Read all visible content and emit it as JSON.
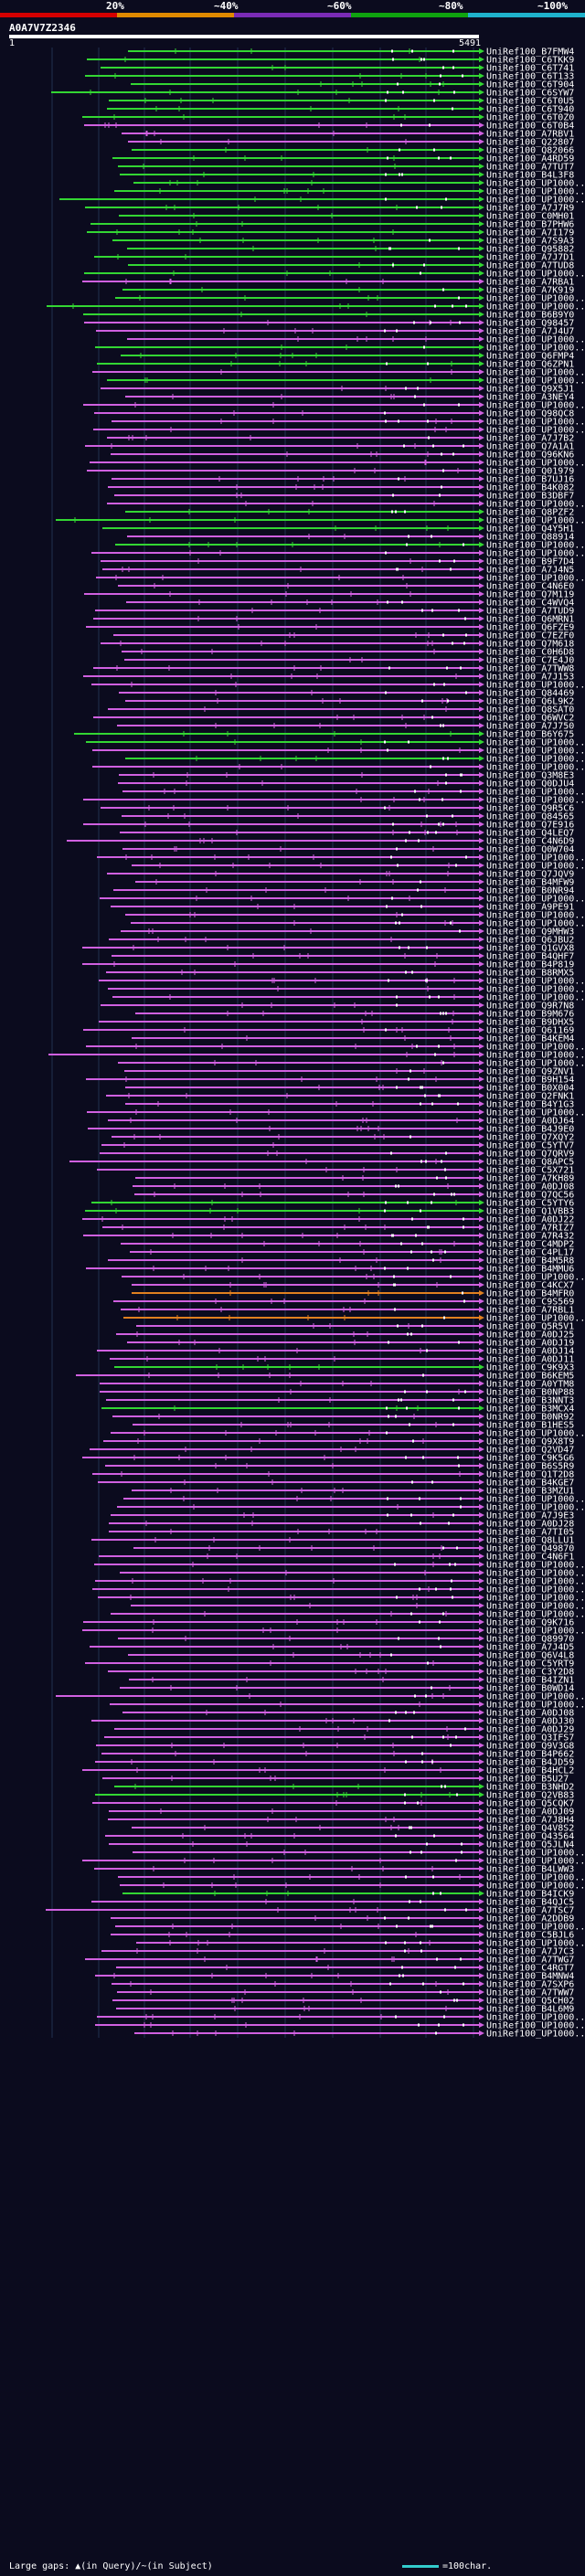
{
  "scale": {
    "ticks": [
      "20%",
      "~40%",
      "~60%",
      "~80%",
      "~100%"
    ],
    "segments": [
      {
        "color": "#d40000"
      },
      {
        "color": "#e08a00"
      },
      {
        "color": "#7a2bb5"
      },
      {
        "color": "#0fa30f"
      },
      {
        "color": "#1fb2cc"
      }
    ]
  },
  "query": {
    "name": "A0A7V7Z2346",
    "start": "1",
    "end": "5491"
  },
  "colors": {
    "purple": "#d060e0",
    "green": "#33d633",
    "orange": "#e08020",
    "grid": "#203050"
  },
  "hit_labels": [
    "UniRef100_B7FMW4",
    "UniRef100_C6TKK9",
    "UniRef100_C6T741",
    "UniRef100_C6T133",
    "UniRef100_C6T904",
    "UniRef100_C6SYW7",
    "UniRef100_C6T0U5",
    "UniRef100_C6T940",
    "UniRef100_C6T0Z0",
    "UniRef100_C6T0B4",
    "UniRef100_A7RBV1",
    "UniRef100_Q22807",
    "UniRef100_Q82066",
    "UniRef100_A4RD59",
    "UniRef100_A7TUT7",
    "UniRef100_B4L3F8",
    "UniRef100_UP1000..",
    "UniRef100_UP1000..",
    "UniRef100_UP1000..",
    "UniRef100_A7J7R9",
    "UniRef100_C0MH01",
    "UniRef100_B7PHW6",
    "UniRef100_A7I179",
    "UniRef100_A7S9A3",
    "UniRef100_Q95882",
    "UniRef100_A7J7D1",
    "UniRef100_A7TUD8",
    "UniRef100_UP1000..",
    "UniRef100_A7RBA1",
    "UniRef100_A7K919",
    "UniRef100_UP1000..",
    "UniRef100_UP1000..",
    "UniRef100_B6B9Y0",
    "UniRef100_Q98457",
    "UniRef100_A7J4U7",
    "UniRef100_UP1000..",
    "UniRef100_UP1000..",
    "UniRef100_Q6FMP4",
    "UniRef100_Q6ZPN1",
    "UniRef100_UP1000..",
    "UniRef100_UP1000..",
    "UniRef100_Q9X5J1",
    "UniRef100_A3NEY4",
    "UniRef100_UP1000..",
    "UniRef100_Q98QC8",
    "UniRef100_UP1000..",
    "UniRef100_UP1000..",
    "UniRef100_A7J7B2",
    "UniRef100_Q7A1A1",
    "UniRef100_Q96KN6",
    "UniRef100_UP1000..",
    "UniRef100_Q01979",
    "UniRef100_B7UJ16",
    "UniRef100_B4K082",
    "UniRef100_B3DBF7",
    "UniRef100_UP1000..",
    "UniRef100_Q8PZF2",
    "UniRef100_UP1000..",
    "UniRef100_Q4Y5H1",
    "UniRef100_Q88914",
    "UniRef100_UP1000..",
    "UniRef100_UP1000..",
    "UniRef100_B9F7D4",
    "UniRef100_A7J4N5",
    "UniRef100_UP1000..",
    "UniRef100_C4N6E0",
    "UniRef100_Q7M119",
    "UniRef100_C4WVQ4",
    "UniRef100_A7TUD9",
    "UniRef100_Q6MRN1",
    "UniRef100_Q6FZE9",
    "UniRef100_C7EZF0",
    "UniRef100_Q7M618",
    "UniRef100_C0H6D8",
    "UniRef100_C7E4J0",
    "UniRef100_A7TWW8",
    "UniRef100_A7J153",
    "UniRef100_UP1000..",
    "UniRef100_Q84469",
    "UniRef100_Q6L9K2",
    "UniRef100_Q8SAT0",
    "UniRef100_Q6WVC2",
    "UniRef100_A7J750",
    "UniRef100_B6Y675",
    "UniRef100_UP1000..",
    "UniRef100_UP1000..",
    "UniRef100_UP1000..",
    "UniRef100_UP1000..",
    "UniRef100_Q3M8E3",
    "UniRef100_Q0DJU4",
    "UniRef100_UP1000..",
    "UniRef100_UP1000..",
    "UniRef100_Q9R5C6",
    "UniRef100_Q84565",
    "UniRef100_Q7E916",
    "UniRef100_Q4LEQ7",
    "UniRef100_C4N6D9",
    "UniRef100_Q0W704",
    "UniRef100_UP1000..",
    "UniRef100_UP1000..",
    "UniRef100_Q7JQV9",
    "UniRef100_B4MFW9",
    "UniRef100_B0NR94",
    "UniRef100_UP1000..",
    "UniRef100_A9PE91",
    "UniRef100_UP1000..",
    "UniRef100_UP1000..",
    "UniRef100_Q9MHW3",
    "UniRef100_Q6JBU2",
    "UniRef100_Q1GVX8",
    "UniRef100_B4QHF7",
    "UniRef100_B4P819",
    "UniRef100_B8RMX5",
    "UniRef100_UP1000..",
    "UniRef100_UP1000..",
    "UniRef100_UP1000..",
    "UniRef100_Q9R7N8",
    "UniRef100_B9M676",
    "UniRef100_B9DHX5",
    "UniRef100_Q61169",
    "UniRef100_B4KEM4",
    "UniRef100_UP1000..",
    "UniRef100_UP1000..",
    "UniRef100_UP1000..",
    "UniRef100_Q9ZNV1",
    "UniRef100_B9H154",
    "UniRef100_B0X004",
    "UniRef100_Q2FNK1",
    "UniRef100_B4Y1G3",
    "UniRef100_UP1000..",
    "UniRef100_A0DJ64",
    "UniRef100_B4J9E0",
    "UniRef100_Q7XQY2",
    "UniRef100_C5YTV7",
    "UniRef100_Q7QRV9",
    "UniRef100_Q8APC5",
    "UniRef100_C5X721",
    "UniRef100_A7KH89",
    "UniRef100_A0DJ08",
    "UniRef100_Q7QC56",
    "UniRef100_C5YTY6",
    "UniRef100_Q1VBB3",
    "UniRef100_A0DJ22",
    "UniRef100_A7RIZ7",
    "UniRef100_A7R432",
    "UniRef100_C4MDP2",
    "UniRef100_C4PL17",
    "UniRef100_B4M5R8",
    "UniRef100_B4MMU6",
    "UniRef100_UP1000..",
    "UniRef100_C4KCX7",
    "UniRef100_B4MFR0",
    "UniRef100_C9S569",
    "UniRef100_A7RBL1",
    "UniRef100_UP1000..",
    "UniRef100_Q5R5V1",
    "UniRef100_A0DJ25",
    "UniRef100_A0DJ19",
    "UniRef100_A0DJ14",
    "UniRef100_A0DJ11",
    "UniRef100_C9K9X3",
    "UniRef100_B6KEM5",
    "UniRef100_A0YTM8",
    "UniRef100_B0NP88",
    "UniRef100_B3NNT3",
    "UniRef100_B3MCX4",
    "UniRef100_B0NR92",
    "UniRef100_B1HES5",
    "UniRef100_UP1000..",
    "UniRef100_Q9X8T9",
    "UniRef100_Q2VD47",
    "UniRef100_C9K5G6",
    "UniRef100_B6S5R9",
    "UniRef100_Q1T2D8",
    "UniRef100_B4KGE7",
    "UniRef100_B3MZU1",
    "UniRef100_UP1000..",
    "UniRef100_UP1000..",
    "UniRef100_A7J9E3",
    "UniRef100_A0DJ28",
    "UniRef100_A7TI05",
    "UniRef100_Q8LLU1",
    "UniRef100_Q49870",
    "UniRef100_C4N6F1",
    "UniRef100_UP1000..",
    "UniRef100_UP1000..",
    "UniRef100_UP1000..",
    "UniRef100_UP1000..",
    "UniRef100_UP1000..",
    "UniRef100_UP1000..",
    "UniRef100_UP1000..",
    "UniRef100_Q9K716",
    "UniRef100_UP1000..",
    "UniRef100_Q89970",
    "UniRef100_A7J4D5",
    "UniRef100_Q6V4L8",
    "UniRef100_C5YRT9",
    "UniRef100_C3Y2D8",
    "UniRef100_B4IZN1",
    "UniRef100_B0WD14",
    "UniRef100_UP1000..",
    "UniRef100_UP1000..",
    "UniRef100_A0DJ08",
    "UniRef100_A0DJ30",
    "UniRef100_A0DJ29",
    "UniRef100_Q3IFS7",
    "UniRef100_Q9V3G8",
    "UniRef100_B4P662",
    "UniRef100_B4JD59",
    "UniRef100_B4HCL2",
    "UniRef100_B5U27",
    "UniRef100_B3NHD2",
    "UniRef100_Q2VB83",
    "UniRef100_Q5CQK7",
    "UniRef100_A0DJ09",
    "UniRef100_A7J8H4",
    "UniRef100_Q4V8S2",
    "UniRef100_Q43564",
    "UniRef100_Q5JLN4",
    "UniRef100_UP1000..",
    "UniRef100_UP1000..",
    "UniRef100_B4LWW3",
    "UniRef100_UP1000..",
    "UniRef100_UP1000..",
    "UniRef100_B4ICK9",
    "UniRef100_B4QJC5",
    "UniRef100_A7TSC7",
    "UniRef100_A2DDB9",
    "UniRef100_UP1000..",
    "UniRef100_C5BJL6",
    "UniRef100_UP1000..",
    "UniRef100_A7J7C3",
    "UniRef100_A7TWG7",
    "UniRef100_C4RGT7",
    "UniRef100_B4MNW4",
    "UniRef100_A7SXP6",
    "UniRef100_A7TWW7",
    "UniRef100_Q5CH02",
    "UniRef100_B4L6M9",
    "UniRef100_UP1000..",
    "UniRef100_UP1000..",
    "UniRef100_UP1000.."
  ],
  "footer": {
    "large_gaps": "Large gaps: ▲(in Query)/~(in Subject)",
    "legend": "=100char."
  }
}
